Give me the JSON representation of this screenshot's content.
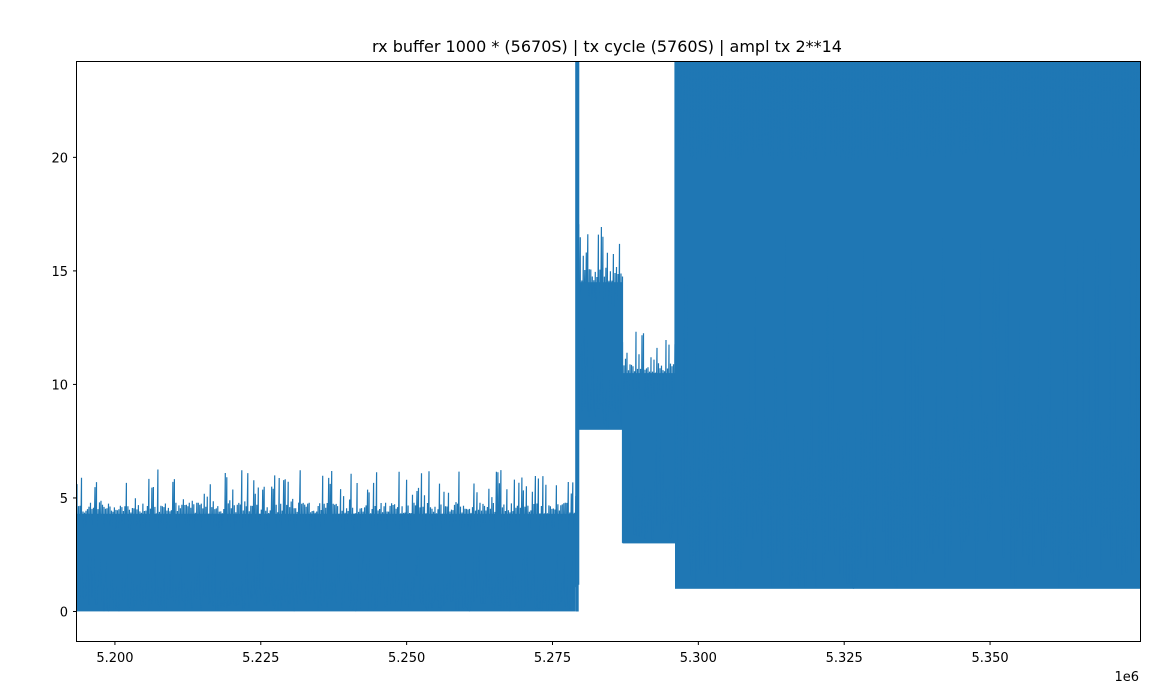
{
  "chart_data": {
    "type": "line",
    "title": "rx buffer 1000 * (5670S) | tx cycle (5760S) | ampl tx 2**14",
    "xlabel": "",
    "ylabel": "",
    "x_offset_label": "1e6",
    "xlim": [
      5.1935,
      5.3757
    ],
    "ylim": [
      -1.3,
      24.2
    ],
    "x_ticks": [
      5.2,
      5.225,
      5.25,
      5.275,
      5.3,
      5.325,
      5.35
    ],
    "x_tick_labels": [
      "5.200",
      "5.225",
      "5.250",
      "5.275",
      "5.300",
      "5.325",
      "5.350"
    ],
    "y_ticks": [
      0,
      5,
      10,
      15,
      20
    ],
    "y_tick_labels": [
      "0",
      "5",
      "10",
      "15",
      "20"
    ],
    "grid": false,
    "series": [
      {
        "color": "#1f77b4",
        "segments": [
          {
            "x_start": 5.1935,
            "x_end": 5.279,
            "baseline_min": 0,
            "band_max": 4.3,
            "peak_max": 6.3
          },
          {
            "x_start": 5.279,
            "x_end": 5.2795,
            "baseline_min": 0,
            "band_max": 24.2,
            "peak_max": 24.2
          },
          {
            "x_start": 5.2795,
            "x_end": 5.287,
            "baseline_min": 8.0,
            "band_max": 14.5,
            "peak_max": 17.2
          },
          {
            "x_start": 5.287,
            "x_end": 5.296,
            "baseline_min": 3.0,
            "band_max": 10.5,
            "peak_max": 12.4
          },
          {
            "x_start": 5.296,
            "x_end": 5.3757,
            "baseline_min": 1.0,
            "band_max": 24.2,
            "peak_max": 24.2
          }
        ]
      }
    ]
  }
}
